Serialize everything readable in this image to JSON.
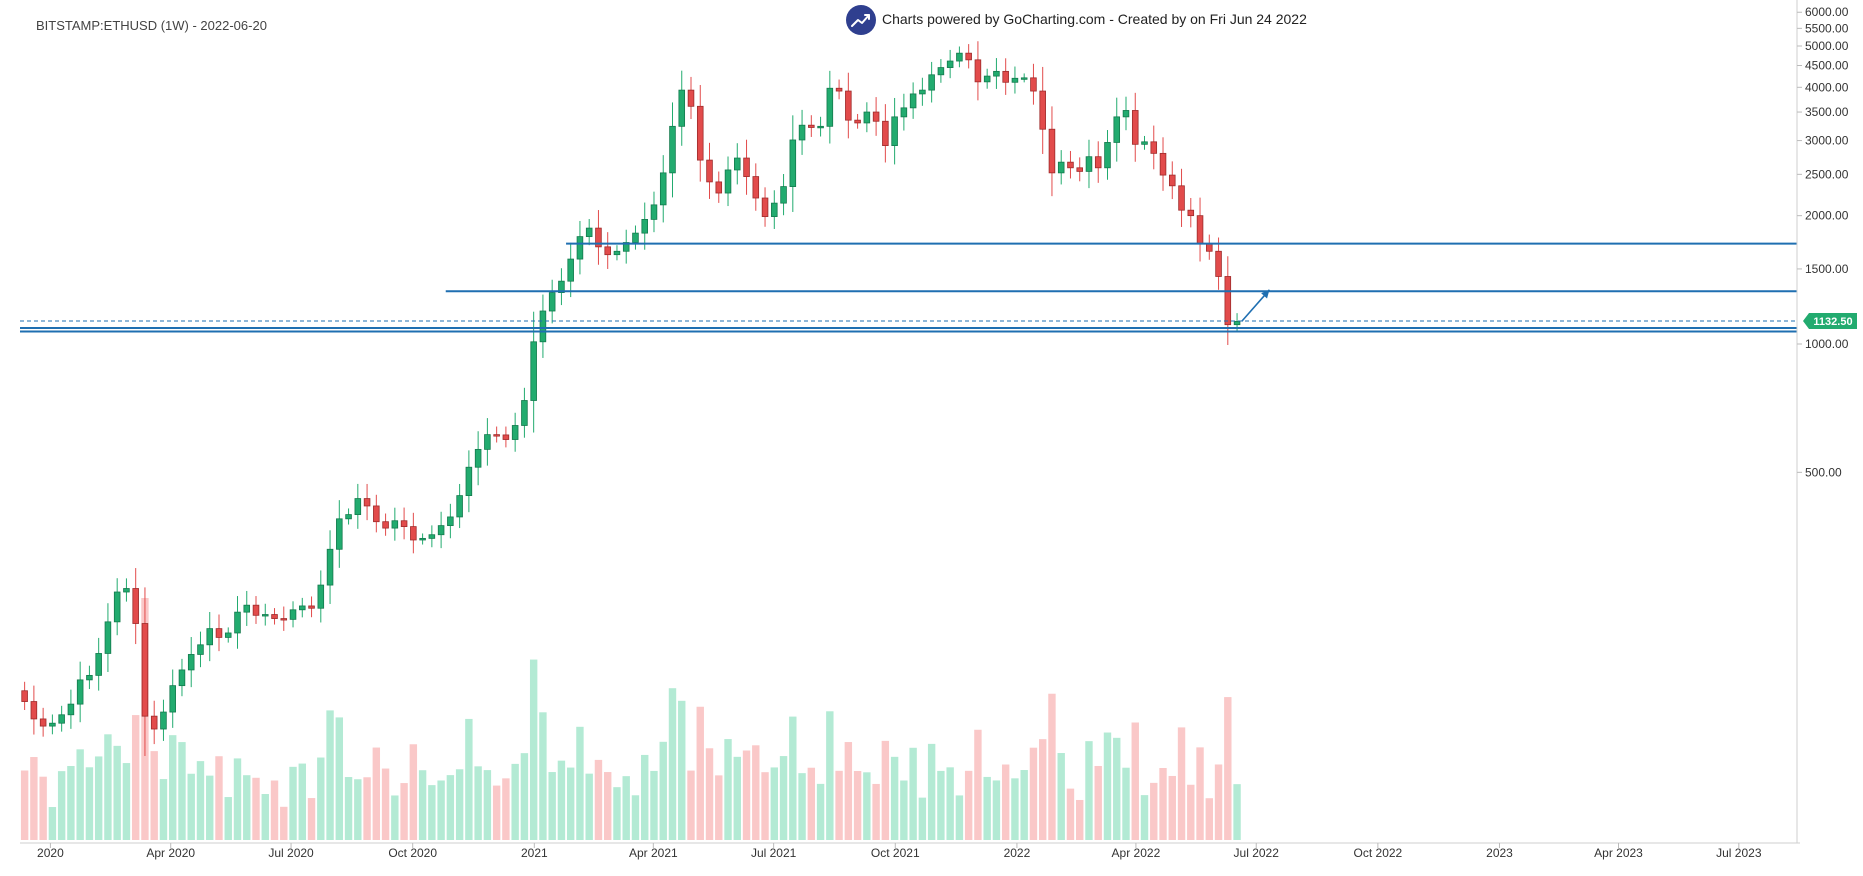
{
  "header": {
    "symbol_line": "BITSTAMP:ETHUSD (1W) - 2022-06-20",
    "credit_line": "Charts powered by GoCharting.com - Created by  on Fri Jun 24 2022",
    "logo_icon": "trending-up-icon"
  },
  "colors": {
    "up": "#22ab6f",
    "down": "#e24b4b",
    "volume_up": "#b3ead4",
    "volume_down": "#fac8c8",
    "level_line": "#1f6fb1",
    "price_label": "#22ab6f",
    "arrow": "#1f6fb1"
  },
  "chart_data": {
    "type": "candlestick",
    "price_scale": "log",
    "ylim": [
      330,
      6200
    ],
    "y_ticks": [
      500,
      1000,
      1500,
      2000,
      2500,
      3000,
      3500,
      4000,
      4500,
      5000,
      5500,
      6000
    ],
    "y_tick_labels": [
      "500.00",
      "1000.00",
      "1500.00",
      "2000.00",
      "2500.00",
      "3000.00",
      "3500.00",
      "4000.00",
      "4500.00",
      "5000.00",
      "5500.00",
      "6000.00"
    ],
    "x_range": [
      "2019-12-09",
      "2023-08-14"
    ],
    "x_ticks": [
      {
        "date": "2020-01-01",
        "label": "2020"
      },
      {
        "date": "2020-04-01",
        "label": "Apr 2020"
      },
      {
        "date": "2020-07-01",
        "label": "Jul 2020"
      },
      {
        "date": "2020-10-01",
        "label": "Oct 2020"
      },
      {
        "date": "2021-01-01",
        "label": "2021"
      },
      {
        "date": "2021-04-01",
        "label": "Apr 2021"
      },
      {
        "date": "2021-07-01",
        "label": "Jul 2021"
      },
      {
        "date": "2021-10-01",
        "label": "Oct 2021"
      },
      {
        "date": "2022-01-01",
        "label": "2022"
      },
      {
        "date": "2022-04-01",
        "label": "Apr 2022"
      },
      {
        "date": "2022-07-01",
        "label": "Jul 2022"
      },
      {
        "date": "2022-10-01",
        "label": "Oct 2022"
      },
      {
        "date": "2023-01-01",
        "label": "2023"
      },
      {
        "date": "2023-04-01",
        "label": "Apr 2023"
      },
      {
        "date": "2023-07-01",
        "label": "Jul 2023"
      }
    ],
    "first_week": "2019-12-09",
    "weekly_closes": [
      145,
      132,
      127,
      129,
      135,
      143,
      163,
      167,
      188,
      223,
      262,
      267,
      221,
      134,
      125,
      137,
      158,
      172,
      187,
      197,
      215,
      205,
      210,
      235,
      244,
      231,
      232,
      227,
      226,
      238,
      243,
      240,
      272,
      330,
      389,
      398,
      434,
      417,
      383,
      370,
      385,
      373,
      347,
      350,
      357,
      375,
      393,
      441,
      514,
      566,
      613,
      612,
      597,
      644,
      737,
      1012,
      1195,
      1320,
      1404,
      1582,
      1786,
      1870,
      1690,
      1620,
      1650,
      1730,
      1820,
      1960,
      2120,
      2520,
      3240,
      3940,
      3610,
      2700,
      2400,
      2260,
      2560,
      2730,
      2470,
      2200,
      1990,
      2140,
      2340,
      3010,
      3260,
      3220,
      3240,
      3980,
      3920,
      3350,
      3300,
      3500,
      3330,
      2920,
      3410,
      3580,
      3860,
      3940,
      4280,
      4450,
      4610,
      4810,
      4640,
      4120,
      4250,
      4360,
      4110,
      4200,
      4210,
      3920,
      3190,
      2520,
      2670,
      2590,
      2540,
      2750,
      2590,
      2970,
      3410,
      3530,
      2940,
      2980,
      2800,
      2490,
      2350,
      2060,
      2000,
      1720,
      1650,
      1440,
      1110,
      1130
    ],
    "support_resistance_lines": [
      {
        "price": 1720,
        "from": "2021-01-25",
        "to": "right-edge"
      },
      {
        "price": 1330,
        "from": "2020-10-26",
        "to": "right-edge"
      },
      {
        "price": 1090,
        "from": "left-edge",
        "to": "right-edge"
      },
      {
        "price": 1070,
        "from": "left-edge",
        "to": "right-edge"
      }
    ],
    "last_price": 1132.5,
    "last_price_label": "1132.50",
    "arrow_annotation": {
      "from": {
        "date": "2022-06-20",
        "price": 1130
      },
      "to": {
        "date": "2022-07-11",
        "price": 1340
      }
    }
  }
}
